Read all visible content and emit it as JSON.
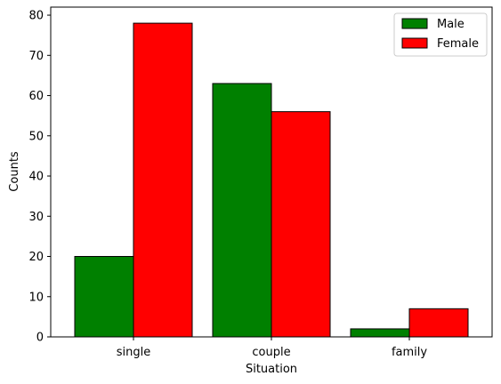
{
  "chart_data": {
    "type": "bar",
    "title": "",
    "xlabel": "Situation",
    "ylabel": "Counts",
    "categories": [
      "single",
      "couple",
      "family"
    ],
    "series": [
      {
        "name": "Male",
        "color": "#008000",
        "values": [
          20,
          63,
          2
        ]
      },
      {
        "name": "Female",
        "color": "#ff0000",
        "values": [
          78,
          56,
          7
        ]
      }
    ],
    "ylim": [
      0,
      82
    ],
    "yticks": [
      0,
      10,
      20,
      30,
      40,
      50,
      60,
      70,
      80
    ],
    "bar_edge_color": "#000000",
    "grid": false,
    "legend_position": "top-right"
  }
}
